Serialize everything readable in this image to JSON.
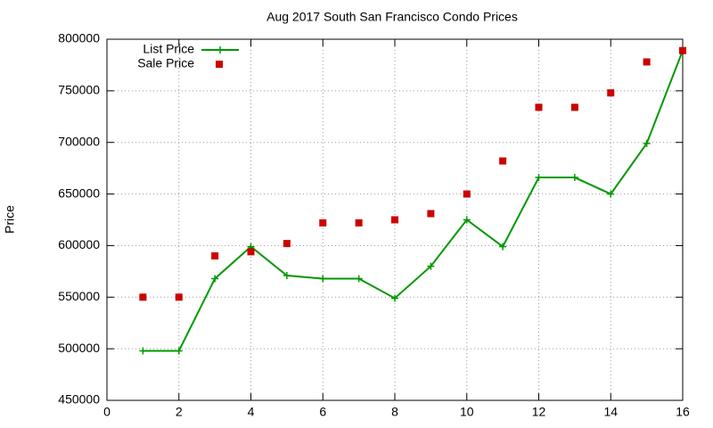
{
  "chart_data": {
    "type": "line",
    "title": "Aug 2017 South San Francisco Condo Prices",
    "ylabel": "Price",
    "x": [
      1,
      2,
      3,
      4,
      5,
      6,
      7,
      8,
      9,
      10,
      11,
      12,
      13,
      14,
      15,
      16
    ],
    "series": [
      {
        "name": "List Price",
        "color": "#009900",
        "style": "line-plus",
        "values": [
          498000,
          498000,
          568000,
          599000,
          571000,
          568000,
          568000,
          549000,
          580000,
          625000,
          599000,
          666000,
          666000,
          650000,
          699000,
          789000
        ]
      },
      {
        "name": "Sale Price",
        "color": "#cc0000",
        "style": "square",
        "values": [
          550000,
          550000,
          590000,
          594000,
          602000,
          622000,
          622000,
          625000,
          631000,
          650000,
          682000,
          734000,
          734000,
          748000,
          778000,
          789000
        ]
      }
    ],
    "xlim": [
      0,
      16
    ],
    "xticks": [
      0,
      2,
      4,
      6,
      8,
      10,
      12,
      14,
      16
    ],
    "ylim": [
      450000,
      800000
    ],
    "yticks": [
      450000,
      500000,
      550000,
      600000,
      650000,
      700000,
      750000,
      800000
    ],
    "grid": true,
    "legend": "top-left"
  }
}
